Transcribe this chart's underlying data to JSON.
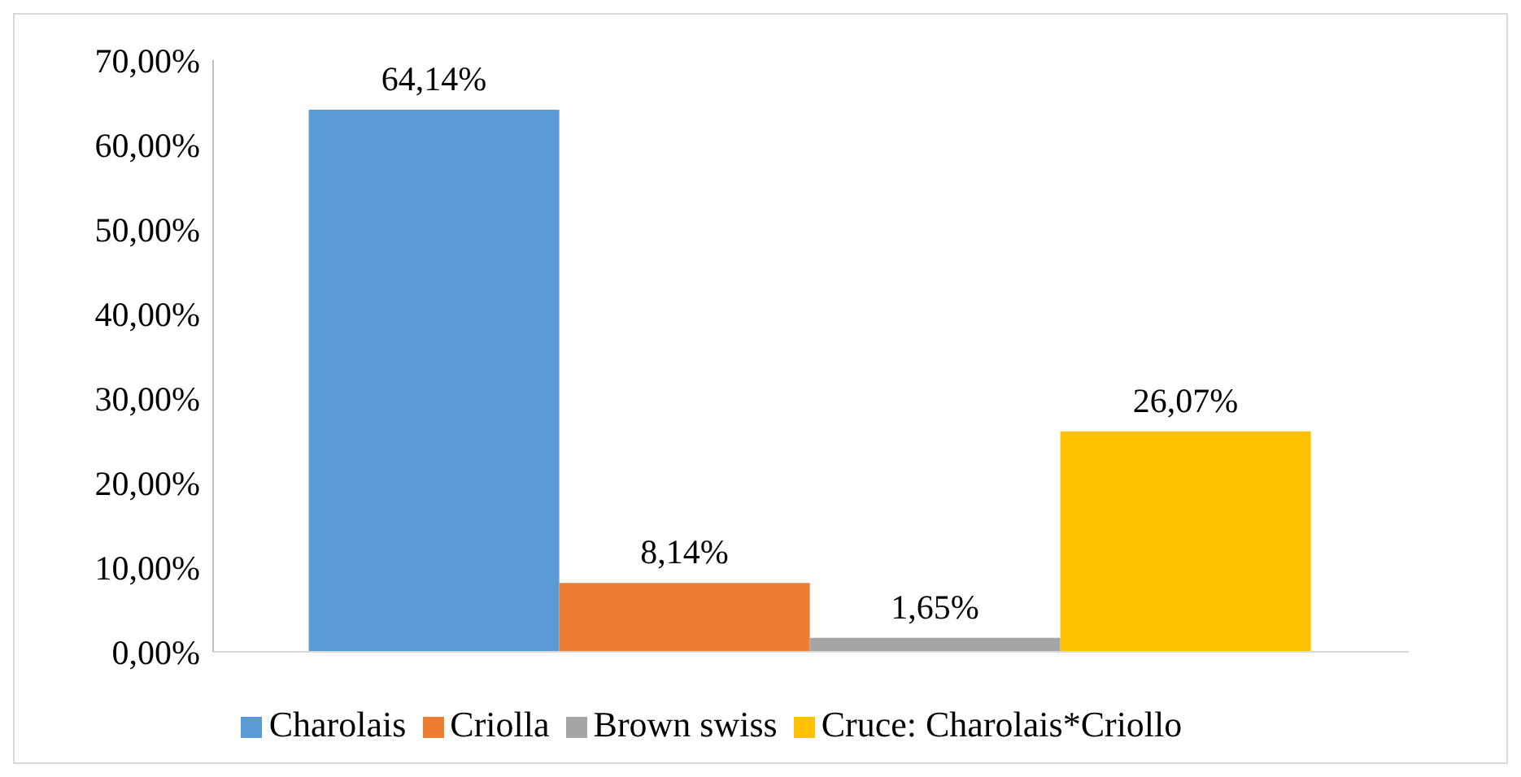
{
  "chart_data": {
    "type": "bar",
    "categories": [
      null
    ],
    "series": [
      {
        "name": "Charolais",
        "color": "#5b9bd5",
        "values": [
          64.14
        ],
        "value_labels": [
          "64,14%"
        ]
      },
      {
        "name": "Criolla",
        "color": "#ed7d31",
        "values": [
          8.14
        ],
        "value_labels": [
          "8,14%"
        ]
      },
      {
        "name": "Brown swiss",
        "color": "#a5a5a5",
        "values": [
          1.65
        ],
        "value_labels": [
          "1,65%"
        ]
      },
      {
        "name": "Cruce: Charolais*Criollo",
        "color": "#ffc000",
        "values": [
          26.07
        ],
        "value_labels": [
          "26,07%"
        ]
      }
    ],
    "ylim": [
      0,
      70
    ],
    "yticks": [
      {
        "value": 0,
        "label": "0,00%"
      },
      {
        "value": 10,
        "label": "10,00%"
      },
      {
        "value": 20,
        "label": "20,00%"
      },
      {
        "value": 30,
        "label": "30,00%"
      },
      {
        "value": 40,
        "label": "40,00%"
      },
      {
        "value": 50,
        "label": "50,00%"
      },
      {
        "value": 60,
        "label": "60,00%"
      },
      {
        "value": 70,
        "label": "70,00%"
      }
    ],
    "legend": "bottom"
  }
}
